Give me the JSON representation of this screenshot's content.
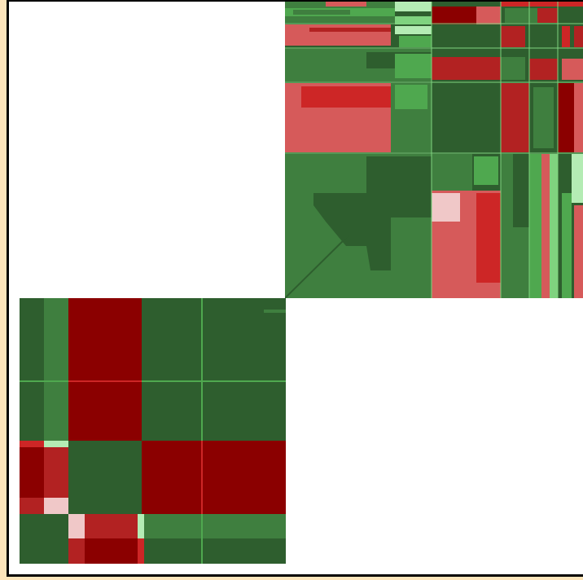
{
  "title": "",
  "palette": {
    "dark_red": "#8b0000",
    "red": "#b22222",
    "mid_red": "#cd2626",
    "light_red": "#d65a5a",
    "pink": "#f0c8c8",
    "dark_green": "#2e5e2e",
    "green": "#3f7f3f",
    "mid_green": "#4fa84f",
    "light_green": "#7fd37f",
    "pale_green": "#b4ecb4",
    "background": "#ffffff",
    "page": "#fde5bb"
  },
  "quadrants": {
    "top_right": "dense-mosaic",
    "bottom_left": "block-matrix"
  }
}
